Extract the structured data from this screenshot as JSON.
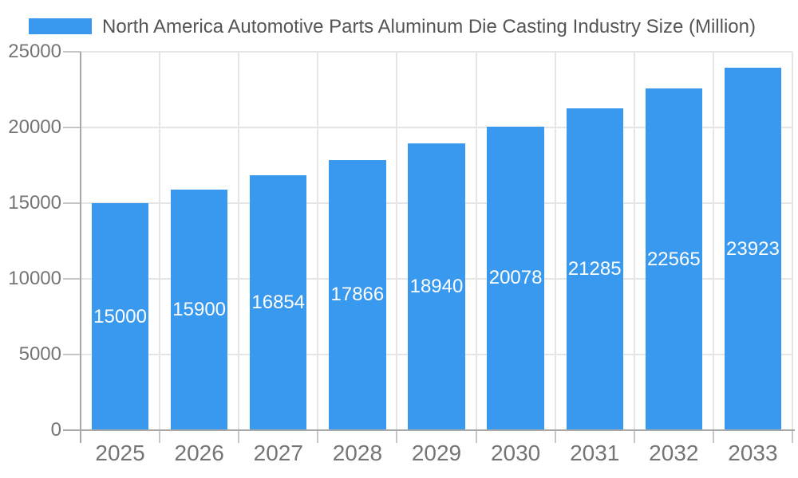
{
  "legend": {
    "series_label": "North America Automotive Parts Aluminum Die Casting Industry Size (Million)"
  },
  "chart_data": {
    "type": "bar",
    "title": "North America Automotive Parts Aluminum Die Casting Industry Size (Million)",
    "categories": [
      "2025",
      "2026",
      "2027",
      "2028",
      "2029",
      "2030",
      "2031",
      "2032",
      "2033"
    ],
    "values": [
      15000,
      15900,
      16854,
      17866,
      18940,
      20078,
      21285,
      22565,
      23923
    ],
    "series": [
      {
        "name": "North America Automotive Parts Aluminum Die Casting Industry Size (Million)",
        "values": [
          15000,
          15900,
          16854,
          17866,
          18940,
          20078,
          21285,
          22565,
          23923
        ]
      }
    ],
    "xlabel": "",
    "ylabel": "",
    "ylim": [
      0,
      25000
    ],
    "y_ticks": [
      0,
      5000,
      10000,
      15000,
      20000,
      25000
    ],
    "grid": true,
    "legend_position": "top-left",
    "value_labels_position": "inside-center"
  },
  "colors": {
    "bar": "#3999ee",
    "gridline": "#e5e5e5",
    "axis_line": "#a8a8a8",
    "tick_mark": "#c6c6c6",
    "axis_label": "#757575",
    "title_text": "#555555",
    "value_label": "#ffffff",
    "background": "#ffffff"
  }
}
